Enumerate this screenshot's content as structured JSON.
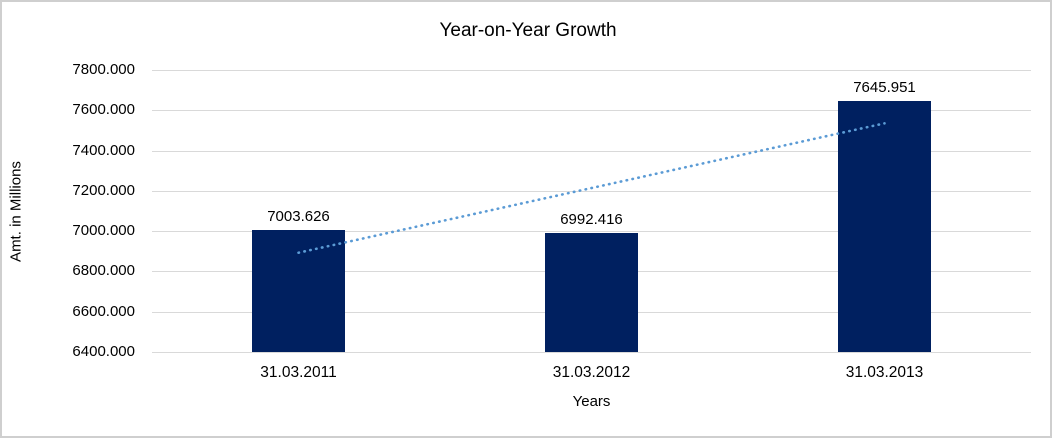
{
  "chart_data": {
    "type": "bar",
    "title": "Year-on-Year Growth",
    "xlabel": "Years",
    "ylabel": "Amt. in Millions",
    "categories": [
      "31.03.2011",
      "31.03.2012",
      "31.03.2013"
    ],
    "values": [
      7003.626,
      6992.416,
      7645.951
    ],
    "data_labels": [
      "7003.626",
      "6992.416",
      "7645.951"
    ],
    "ylim": [
      6400,
      7800
    ],
    "ytick_step": 200,
    "ytick_labels": [
      "6400.000",
      "6600.000",
      "6800.000",
      "7000.000",
      "7200.000",
      "7400.000",
      "7600.000",
      "7800.000"
    ],
    "grid": true,
    "legend": "none",
    "bar_color": "#002060",
    "trendline": {
      "type": "linear",
      "style": "dotted",
      "color": "#5B9BD5",
      "fitted_values": [
        6892.84,
        7213.998,
        7535.16
      ]
    },
    "gridline_color": "#D9D9D9",
    "axis_line_color": "#D9D9D9",
    "text_color": "#000000",
    "background_color": "#FFFFFF",
    "border_color": "#CFCFCF"
  }
}
